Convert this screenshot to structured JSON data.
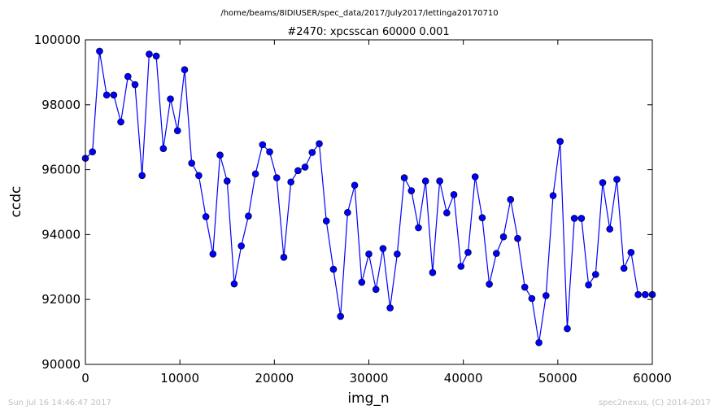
{
  "figure": {
    "suptitle": "/home/beams/8IDIUSER/spec_data/2017/July2017/lettinga20170710",
    "footer_left": "Sun Jul 16 14:46:47 2017",
    "footer_right": "spec2nexus, (C) 2014-2017"
  },
  "chart_data": {
    "type": "line",
    "title": "#2470: xpcsscan 60000 0.001",
    "xlabel": "img_n",
    "ylabel": "ccdc",
    "xlim": [
      0,
      60000
    ],
    "ylim": [
      90000,
      100000
    ],
    "xticks": [
      0,
      10000,
      20000,
      30000,
      40000,
      50000,
      60000
    ],
    "yticks": [
      90000,
      92000,
      94000,
      96000,
      98000,
      100000
    ],
    "grid": false,
    "legend": "none",
    "color": "#0000ff",
    "marker": "circle",
    "x": [
      0,
      750,
      1500,
      2250,
      3000,
      3750,
      4500,
      5250,
      6000,
      6750,
      7500,
      8250,
      9000,
      9750,
      10500,
      11250,
      12000,
      12750,
      13500,
      14250,
      15000,
      15750,
      16500,
      17250,
      18000,
      18750,
      19500,
      20250,
      21000,
      21750,
      22500,
      23250,
      24000,
      24750,
      25500,
      26250,
      27000,
      27750,
      28500,
      29250,
      30000,
      30750,
      31500,
      32250,
      33000,
      33750,
      34500,
      35250,
      36000,
      36750,
      37500,
      38250,
      39000,
      39750,
      40500,
      41250,
      42000,
      42750,
      43500,
      44250,
      45000,
      45750,
      46500,
      47250,
      48000,
      48750,
      49500,
      50250,
      51000,
      51750,
      52500,
      53250,
      54000,
      54750,
      55500,
      56250,
      57000,
      57750,
      58500,
      59250,
      60000
    ],
    "y": [
      96350,
      96550,
      99650,
      98300,
      98300,
      97470,
      98870,
      98620,
      95820,
      99560,
      99500,
      96650,
      98180,
      97200,
      99080,
      96200,
      95820,
      94550,
      93400,
      96450,
      95650,
      92480,
      93650,
      94570,
      95870,
      96770,
      96550,
      95750,
      93300,
      95620,
      95970,
      96080,
      96530,
      96800,
      94420,
      92930,
      91480,
      94680,
      95520,
      92530,
      93400,
      92310,
      93570,
      91740,
      93400,
      95750,
      95350,
      94210,
      95650,
      92830,
      95650,
      94670,
      95230,
      93020,
      93450,
      95780,
      94520,
      92470,
      93420,
      93930,
      95080,
      93880,
      92380,
      92030,
      90670,
      92120,
      95200,
      96870,
      91100,
      94500,
      94500,
      92450,
      92770,
      95600,
      94170,
      95700,
      92960,
      93450,
      92150,
      92150,
      92150
    ]
  }
}
